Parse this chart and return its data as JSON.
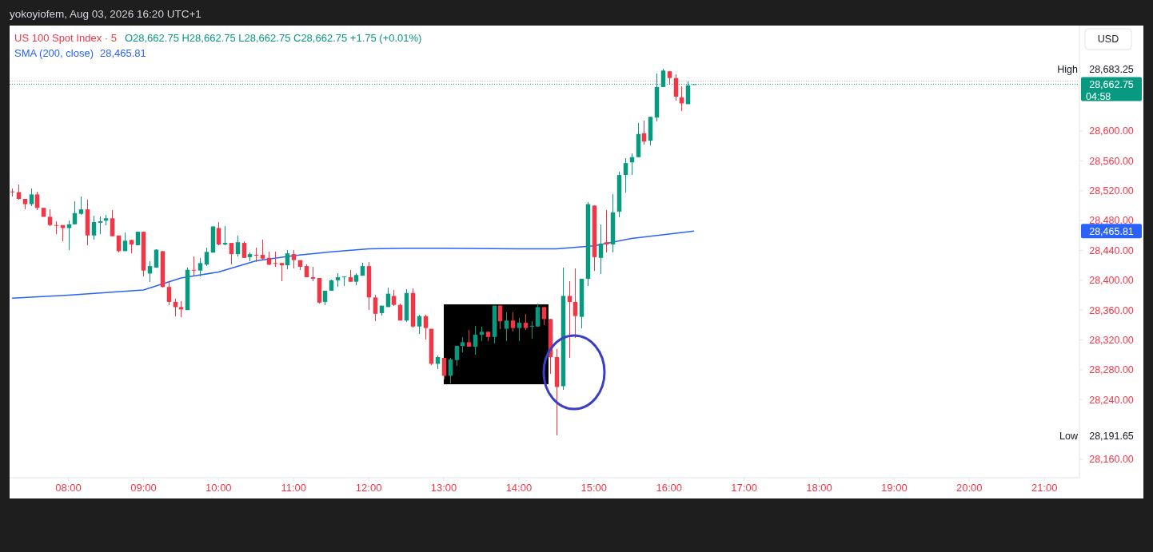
{
  "chart_data": {
    "type": "candlestick",
    "title": "US 100 Spot Index · 5",
    "subtitle": "O28,662.75 H28,662.75 L28,662.75 C28,662.75 +1.75 (+0.01%)",
    "x": [
      "2026-08-03T07:15",
      "2026-08-03T07:20",
      "2026-08-03T07:25",
      "2026-08-03T07:30",
      "2026-08-03T07:35",
      "2026-08-03T07:40",
      "2026-08-03T07:45",
      "2026-08-03T07:50",
      "2026-08-03T07:55",
      "2026-08-03T08:00",
      "2026-08-03T08:05",
      "2026-08-03T08:10",
      "2026-08-03T08:15",
      "2026-08-03T08:20",
      "2026-08-03T08:25",
      "2026-08-03T08:30",
      "2026-08-03T08:35",
      "2026-08-03T08:40",
      "2026-08-03T08:45",
      "2026-08-03T08:50",
      "2026-08-03T08:55",
      "2026-08-03T09:00",
      "2026-08-03T09:05",
      "2026-08-03T09:10",
      "2026-08-03T09:15",
      "2026-08-03T09:20",
      "2026-08-03T09:25",
      "2026-08-03T09:30",
      "2026-08-03T09:35",
      "2026-08-03T09:40",
      "2026-08-03T09:45",
      "2026-08-03T09:50",
      "2026-08-03T09:55",
      "2026-08-03T10:00",
      "2026-08-03T10:05",
      "2026-08-03T10:10",
      "2026-08-03T10:15",
      "2026-08-03T10:20",
      "2026-08-03T10:25",
      "2026-08-03T10:30",
      "2026-08-03T10:35",
      "2026-08-03T10:40",
      "2026-08-03T10:45",
      "2026-08-03T10:50",
      "2026-08-03T10:55",
      "2026-08-03T11:00",
      "2026-08-03T11:05",
      "2026-08-03T11:10",
      "2026-08-03T11:15",
      "2026-08-03T11:20",
      "2026-08-03T11:25",
      "2026-08-03T11:30",
      "2026-08-03T11:35",
      "2026-08-03T11:40",
      "2026-08-03T11:45",
      "2026-08-03T11:50",
      "2026-08-03T11:55",
      "2026-08-03T12:00",
      "2026-08-03T12:05",
      "2026-08-03T12:10",
      "2026-08-03T12:15",
      "2026-08-03T12:20",
      "2026-08-03T12:25",
      "2026-08-03T12:30",
      "2026-08-03T12:35",
      "2026-08-03T12:40",
      "2026-08-03T12:45",
      "2026-08-03T12:50",
      "2026-08-03T12:55",
      "2026-08-03T13:00",
      "2026-08-03T13:05",
      "2026-08-03T13:10",
      "2026-08-03T13:15",
      "2026-08-03T13:20",
      "2026-08-03T13:25",
      "2026-08-03T13:30",
      "2026-08-03T13:35",
      "2026-08-03T13:40",
      "2026-08-03T13:45",
      "2026-08-03T13:50",
      "2026-08-03T13:55",
      "2026-08-03T14:00",
      "2026-08-03T14:05",
      "2026-08-03T14:10",
      "2026-08-03T14:15",
      "2026-08-03T14:20",
      "2026-08-03T14:25",
      "2026-08-03T14:30",
      "2026-08-03T14:35",
      "2026-08-03T14:40",
      "2026-08-03T14:45",
      "2026-08-03T14:50",
      "2026-08-03T14:55",
      "2026-08-03T15:00",
      "2026-08-03T15:05",
      "2026-08-03T15:10",
      "2026-08-03T15:15",
      "2026-08-03T15:20",
      "2026-08-03T15:25",
      "2026-08-03T15:30",
      "2026-08-03T15:35",
      "2026-08-03T15:40",
      "2026-08-03T15:45",
      "2026-08-03T15:50",
      "2026-08-03T15:55",
      "2026-08-03T16:00",
      "2026-08-03T16:05",
      "2026-08-03T16:10",
      "2026-08-03T16:15",
      "2026-08-03T16:20"
    ],
    "ohlc": [
      [
        28519,
        28523,
        28512,
        28519
      ],
      [
        28518,
        28528,
        28508,
        28509
      ],
      [
        28509,
        28509,
        28495,
        28502
      ],
      [
        28502,
        28523,
        28499,
        28515
      ],
      [
        28515,
        28519,
        28494,
        28497
      ],
      [
        28497,
        28497,
        28485,
        28485
      ],
      [
        28485,
        28495,
        28473,
        28474
      ],
      [
        28474,
        28479,
        28462,
        28474
      ],
      [
        28474,
        28474,
        28452,
        28470
      ],
      [
        28470,
        28480,
        28441,
        28475
      ],
      [
        28475,
        28506,
        28475,
        28490
      ],
      [
        28489,
        28512,
        28488,
        28495
      ],
      [
        28495,
        28508,
        28447,
        28460
      ],
      [
        28460,
        28487,
        28454,
        28478
      ],
      [
        28477,
        28485,
        28462,
        28479
      ],
      [
        28480,
        28488,
        28474,
        28483
      ],
      [
        28483,
        28494,
        28459,
        28459
      ],
      [
        28460,
        28460,
        28437,
        28439
      ],
      [
        28439,
        28464,
        28439,
        28453
      ],
      [
        28454,
        28454,
        28436,
        28448
      ],
      [
        28447,
        28465,
        28447,
        28465
      ],
      [
        28465,
        28465,
        28405,
        28413
      ],
      [
        28409,
        28426,
        28398,
        28419
      ],
      [
        28417,
        28442,
        28417,
        28441
      ],
      [
        28439,
        28439,
        28390,
        28391
      ],
      [
        28391,
        28398,
        28367,
        28371
      ],
      [
        28371,
        28375,
        28352,
        28364
      ],
      [
        28364,
        28372,
        28351,
        28361
      ],
      [
        28360,
        28417,
        28360,
        28414
      ],
      [
        28414,
        28432,
        28406,
        28413
      ],
      [
        28413,
        28430,
        28405,
        28423
      ],
      [
        28421,
        28444,
        28419,
        28438
      ],
      [
        28437,
        28473,
        28437,
        28472
      ],
      [
        28470,
        28478,
        28447,
        28448
      ],
      [
        28448,
        28473,
        28447,
        28450
      ],
      [
        28450,
        28450,
        28421,
        28435
      ],
      [
        28435,
        28460,
        28432,
        28451
      ],
      [
        28450,
        28452,
        28430,
        28430
      ],
      [
        28431,
        28437,
        28426,
        28435
      ],
      [
        28434,
        28444,
        28424,
        28434
      ],
      [
        28434,
        28454,
        28428,
        28429
      ],
      [
        28430,
        28438,
        28420,
        28421
      ],
      [
        28423,
        28438,
        28418,
        28423
      ],
      [
        28423,
        28423,
        28399,
        28420
      ],
      [
        28420,
        28441,
        28415,
        28436
      ],
      [
        28435,
        28441,
        28416,
        28427
      ],
      [
        28427,
        28427,
        28414,
        28418
      ],
      [
        28419,
        28421,
        28404,
        28404
      ],
      [
        28404,
        28418,
        28399,
        28402
      ],
      [
        28403,
        28403,
        28369,
        28370
      ],
      [
        28371,
        28386,
        28367,
        28386
      ],
      [
        28386,
        28401,
        28386,
        28400
      ],
      [
        28400,
        28409,
        28391,
        28404
      ],
      [
        28404,
        28405,
        28392,
        28405
      ],
      [
        28404,
        28414,
        28398,
        28398
      ],
      [
        28398,
        28409,
        28393,
        28407
      ],
      [
        28406,
        28423,
        28406,
        28419
      ],
      [
        28419,
        28424,
        28360,
        28377
      ],
      [
        28377,
        28381,
        28345,
        28355
      ],
      [
        28356,
        28366,
        28353,
        28366
      ],
      [
        28364,
        28390,
        28364,
        28382
      ],
      [
        28379,
        28387,
        28366,
        28367
      ],
      [
        28367,
        28369,
        28346,
        28346
      ],
      [
        28346,
        28388,
        28344,
        28383
      ],
      [
        28383,
        28389,
        28337,
        28338
      ],
      [
        28338,
        28354,
        28328,
        28352
      ],
      [
        28352,
        28354,
        28321,
        28336
      ],
      [
        28335,
        28335,
        28286,
        28288
      ],
      [
        28288,
        28299,
        28281,
        28297
      ],
      [
        28296,
        28296,
        28267,
        28272
      ],
      [
        28272,
        28296,
        28262,
        28294
      ],
      [
        28293,
        28312,
        28285,
        28312
      ],
      [
        28312,
        28324,
        28303,
        28317
      ],
      [
        28317,
        28333,
        28311,
        28311
      ],
      [
        28311,
        28339,
        28300,
        28327
      ],
      [
        28327,
        28338,
        28318,
        28331
      ],
      [
        28331,
        28331,
        28318,
        28324
      ],
      [
        28324,
        28366,
        28315,
        28366
      ],
      [
        28366,
        28367,
        28335,
        28345
      ],
      [
        28335,
        28357,
        28318,
        28346
      ],
      [
        28346,
        28357,
        28331,
        28336
      ],
      [
        28336,
        28349,
        28318,
        28343
      ],
      [
        28343,
        28355,
        28333,
        28336
      ],
      [
        28339,
        28345,
        28322,
        28339
      ],
      [
        28338,
        28369,
        28338,
        28364
      ],
      [
        28364,
        28364,
        28340,
        28348
      ],
      [
        28348,
        28348,
        28275,
        28297
      ],
      [
        28297,
        28308,
        28191.65,
        28257
      ],
      [
        28258,
        28417,
        28253,
        28379
      ],
      [
        28379,
        28399,
        28296,
        28371
      ],
      [
        28371,
        28416,
        28323,
        28352
      ],
      [
        28351,
        28402,
        28336,
        28402
      ],
      [
        28402,
        28505,
        28392,
        28502
      ],
      [
        28500,
        28500,
        28413,
        28431
      ],
      [
        28430,
        28475,
        28408,
        28449
      ],
      [
        28451,
        28494,
        28437,
        28448
      ],
      [
        28448,
        28515,
        28437,
        28491
      ],
      [
        28492,
        28545,
        28484,
        28541
      ],
      [
        28541,
        28564,
        28518,
        28557
      ],
      [
        28558,
        28570,
        28541,
        28565
      ],
      [
        28565,
        28611,
        28565,
        28596
      ],
      [
        28597,
        28614,
        28582,
        28586
      ],
      [
        28587,
        28619,
        28581,
        28619
      ],
      [
        28618,
        28677,
        28613,
        28659
      ],
      [
        28659,
        28683.25,
        28659,
        28681
      ],
      [
        28680,
        28680,
        28662,
        28671
      ],
      [
        28671,
        28676,
        28641,
        28646
      ],
      [
        28645,
        28660,
        28627,
        28637
      ],
      [
        28636,
        28666,
        28636,
        28661
      ],
      [
        28662.75,
        28662.75,
        28662.75,
        28662.75
      ]
    ],
    "colors": [
      "#f23645",
      "#f23645",
      "#f23645",
      "#089981",
      "#f23645",
      "#f23645",
      "#f23645",
      "#f23645",
      "#f23645",
      "#089981",
      "#089981",
      "#089981",
      "#f23645",
      "#089981",
      "#089981",
      "#089981",
      "#f23645",
      "#f23645",
      "#089981",
      "#f23645",
      "#089981",
      "#f23645",
      "#089981",
      "#089981",
      "#f23645",
      "#f23645",
      "#f23645",
      "#f23645",
      "#089981",
      "#f23645",
      "#089981",
      "#089981",
      "#089981",
      "#f23645",
      "#089981",
      "#f23645",
      "#089981",
      "#f23645",
      "#089981",
      "#f23645",
      "#f23645",
      "#f23645",
      "#f23645",
      "#f23645",
      "#089981",
      "#f23645",
      "#f23645",
      "#f23645",
      "#f23645",
      "#f23645",
      "#089981",
      "#089981",
      "#089981",
      "#089981",
      "#f23645",
      "#089981",
      "#089981",
      "#f23645",
      "#f23645",
      "#089981",
      "#089981",
      "#f23645",
      "#f23645",
      "#089981",
      "#f23645",
      "#089981",
      "#f23645",
      "#f23645",
      "#089981",
      "#f23645",
      "#089981",
      "#089981",
      "#089981",
      "#f23645",
      "#089981",
      "#089981",
      "#f23645",
      "#089981",
      "#f23645",
      "#089981",
      "#f23645",
      "#089981",
      "#f23645",
      "#089981",
      "#089981",
      "#f23645",
      "#f23645",
      "#f23645",
      "#089981",
      "#f23645",
      "#f23645",
      "#089981",
      "#089981",
      "#f23645",
      "#089981",
      "#f23645",
      "#089981",
      "#089981",
      "#089981",
      "#089981",
      "#089981",
      "#f23645",
      "#089981",
      "#089981",
      "#089981",
      "#f23645",
      "#f23645",
      "#f23645",
      "#089981",
      "#089981"
    ],
    "series": [
      {
        "type": "line",
        "name": "SMA (200, close)",
        "color": "#2962ff",
        "x": [
          "2026-08-03T07:15",
          "2026-08-03T08:00",
          "2026-08-03T09:00",
          "2026-08-03T09:30",
          "2026-08-03T10:00",
          "2026-08-03T10:30",
          "2026-08-03T11:00",
          "2026-08-03T11:30",
          "2026-08-03T12:00",
          "2026-08-03T12:30",
          "2026-08-03T13:00",
          "2026-08-03T14:00",
          "2026-08-03T14:30",
          "2026-08-03T15:00",
          "2026-08-03T15:30",
          "2026-08-03T16:00",
          "2026-08-03T16:20"
        ],
        "values": [
          28376,
          28380,
          28387,
          28403,
          28411,
          28426,
          28433,
          28438,
          28442,
          28443,
          28443,
          28442,
          28442,
          28446,
          28456,
          28462,
          28466
        ]
      }
    ],
    "xlim": [
      "2026-08-03T07:13",
      "2026-08-03T21:28"
    ],
    "xticks": [
      {
        "value": "2026-08-03T08:00",
        "label": "08:00"
      },
      {
        "value": "2026-08-03T09:00",
        "label": "09:00"
      },
      {
        "value": "2026-08-03T10:00",
        "label": "10:00"
      },
      {
        "value": "2026-08-03T11:00",
        "label": "11:00"
      },
      {
        "value": "2026-08-03T12:00",
        "label": "12:00"
      },
      {
        "value": "2026-08-03T13:00",
        "label": "13:00"
      },
      {
        "value": "2026-08-03T14:00",
        "label": "14:00"
      },
      {
        "value": "2026-08-03T15:00",
        "label": "15:00"
      },
      {
        "value": "2026-08-03T16:00",
        "label": "16:00"
      },
      {
        "value": "2026-08-03T17:00",
        "label": "17:00"
      },
      {
        "value": "2026-08-03T18:00",
        "label": "18:00"
      },
      {
        "value": "2026-08-03T19:00",
        "label": "19:00"
      },
      {
        "value": "2026-08-03T20:00",
        "label": "20:00"
      },
      {
        "value": "2026-08-03T21:00",
        "label": "21:00"
      }
    ],
    "ylim": [
      28135.4,
      28741.3
    ],
    "yticks": [
      {
        "value": 28160,
        "label": "28,160.00"
      },
      {
        "value": 28240,
        "label": "28,240.00"
      },
      {
        "value": 28280,
        "label": "28,280.00"
      },
      {
        "value": 28320,
        "label": "28,320.00"
      },
      {
        "value": 28360,
        "label": "28,360.00"
      },
      {
        "value": 28400,
        "label": "28,400.00"
      },
      {
        "value": 28440,
        "label": "28,440.00"
      },
      {
        "value": 28480,
        "label": "28,480.00"
      },
      {
        "value": 28520,
        "label": "28,520.00"
      },
      {
        "value": 28560,
        "label": "28,560.00"
      },
      {
        "value": 28600,
        "label": "28,600.00"
      }
    ],
    "ref_lines": [
      {
        "axis": "y",
        "value": 28667,
        "color": "#f7a1b0",
        "line_style": "dotted"
      },
      {
        "axis": "y",
        "value": 28662.75,
        "label": "28,662.75",
        "color": "#089981",
        "line_style": "dotted"
      }
    ],
    "annotations": [
      "yokoyiofem, Aug 03, 2026 16:20 UTC+1",
      "USD",
      "04:58",
      "High",
      "28,683.25",
      "Low",
      "28,191.65",
      "28,465.81",
      "28,465.81"
    ],
    "legend": "top left"
  }
}
